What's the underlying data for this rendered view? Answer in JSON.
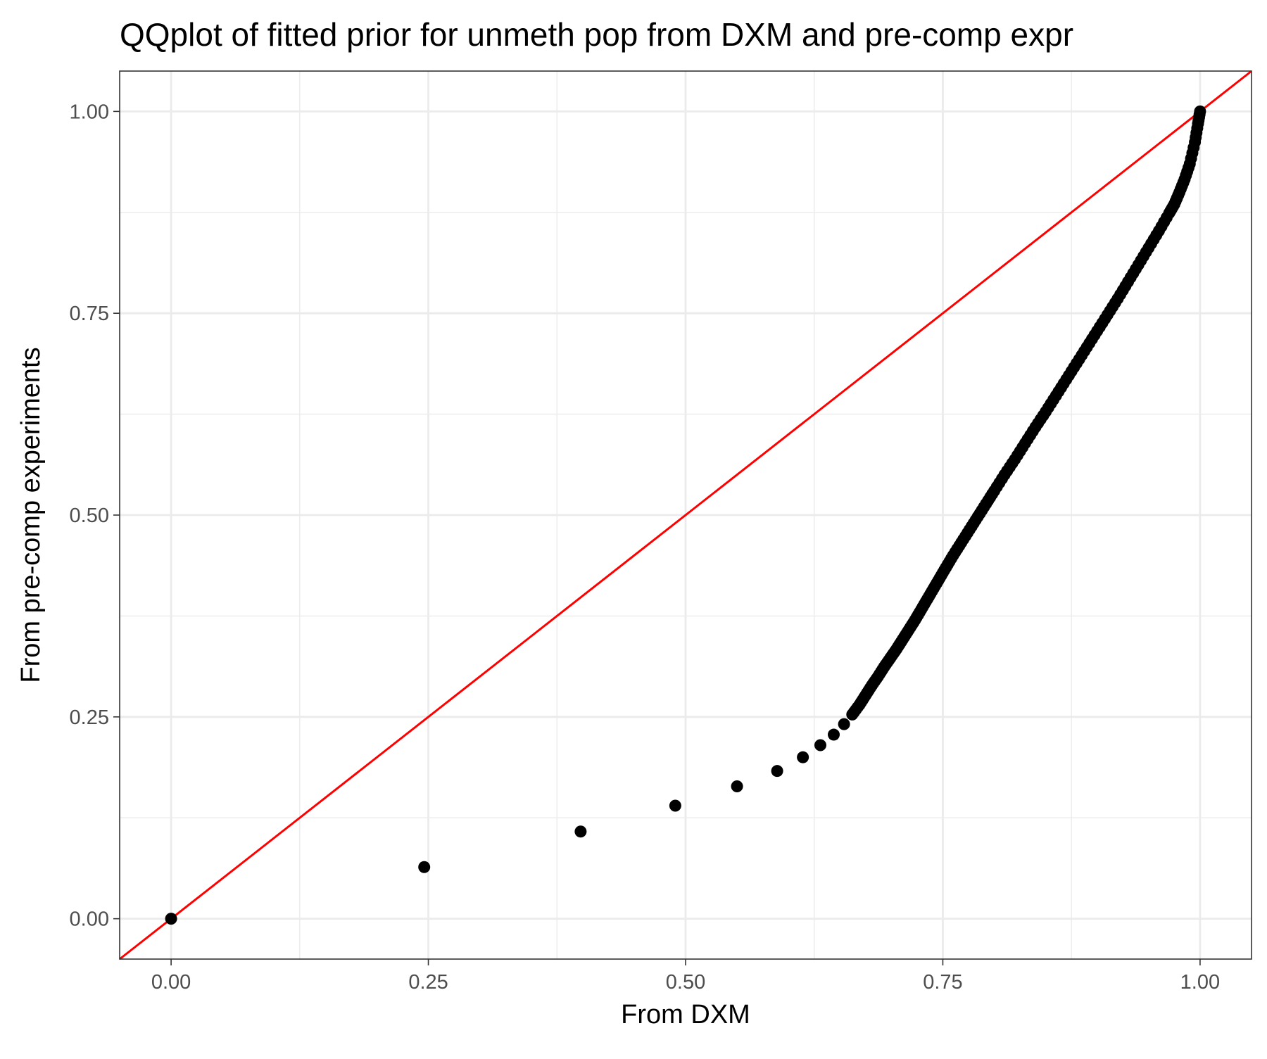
{
  "chart_data": {
    "type": "scatter",
    "title": "QQplot of fitted prior for unmeth pop from DXM and pre-comp expr",
    "xlabel": "From DXM",
    "ylabel": "From pre-comp experiments",
    "xlim": [
      -0.05,
      1.05
    ],
    "ylim": [
      -0.05,
      1.05
    ],
    "x_ticks": [
      "0.00",
      "0.25",
      "0.50",
      "0.75",
      "1.00"
    ],
    "y_ticks": [
      "0.00",
      "0.25",
      "0.50",
      "0.75",
      "1.00"
    ],
    "x_tick_values": [
      0,
      0.25,
      0.5,
      0.75,
      1.0
    ],
    "y_tick_values": [
      0,
      0.25,
      0.5,
      0.75,
      1.0
    ],
    "grid": true,
    "reference_line": {
      "slope": 1,
      "intercept": 0,
      "color": "#ff0000"
    },
    "points_color": "#000000",
    "series": [
      {
        "x": [
          0.0,
          0.246,
          0.398,
          0.49,
          0.55,
          0.589,
          0.614,
          0.631,
          0.644,
          0.654,
          0.662,
          0.669,
          0.675,
          0.681,
          0.687,
          0.693,
          0.699,
          0.705,
          0.711,
          0.717,
          0.723,
          0.729,
          0.735,
          0.741,
          0.747,
          0.753,
          0.76,
          0.768,
          0.776,
          0.784,
          0.792,
          0.8,
          0.81,
          0.82,
          0.83,
          0.84,
          0.85,
          0.86,
          0.87,
          0.88,
          0.89,
          0.9,
          0.91,
          0.92,
          0.93,
          0.94,
          0.95,
          0.96,
          0.97,
          0.975,
          0.98,
          0.985,
          0.99,
          0.995,
          0.998,
          1.0
        ],
        "y": [
          0.0,
          0.064,
          0.108,
          0.14,
          0.164,
          0.183,
          0.2,
          0.215,
          0.228,
          0.241,
          0.253,
          0.265,
          0.277,
          0.289,
          0.3,
          0.312,
          0.323,
          0.334,
          0.346,
          0.358,
          0.37,
          0.383,
          0.396,
          0.409,
          0.422,
          0.435,
          0.45,
          0.466,
          0.482,
          0.498,
          0.514,
          0.53,
          0.55,
          0.569,
          0.589,
          0.609,
          0.628,
          0.648,
          0.668,
          0.688,
          0.708,
          0.728,
          0.748,
          0.768,
          0.789,
          0.81,
          0.831,
          0.852,
          0.874,
          0.885,
          0.9,
          0.916,
          0.935,
          0.962,
          0.985,
          1.0
        ]
      }
    ]
  }
}
